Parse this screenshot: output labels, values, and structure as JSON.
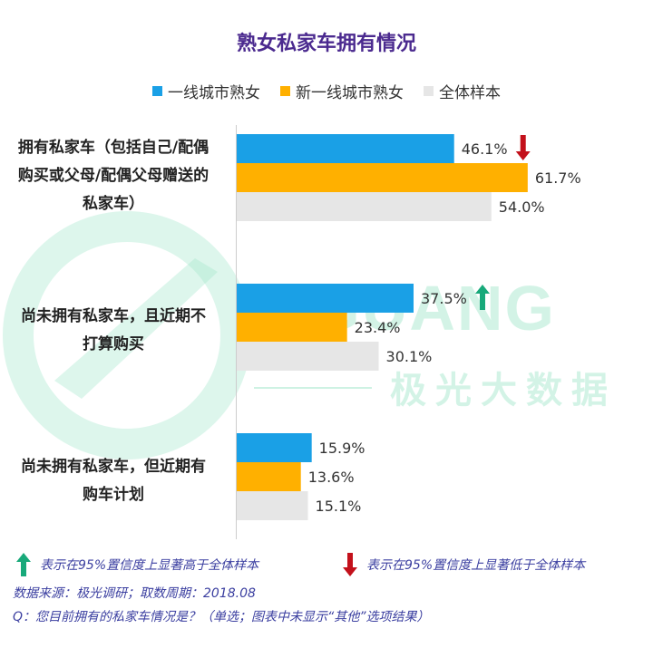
{
  "title": "熟女私家车拥有情况",
  "colors": {
    "series1": "#1aa0e6",
    "series2": "#ffb000",
    "series3": "#e6e6e6",
    "up": "#18a97a",
    "down": "#c3111b",
    "title": "#4b2a8f",
    "note": "#3b3fa0"
  },
  "legend": [
    {
      "label": "一线城市熟女",
      "color_key": "series1"
    },
    {
      "label": "新一线城市熟女",
      "color_key": "series2"
    },
    {
      "label": "全体样本",
      "color_key": "series3"
    }
  ],
  "chart_data": {
    "type": "bar",
    "orientation": "horizontal",
    "title": "熟女私家车拥有情况",
    "categories": [
      "拥有私家车（包括自己/配偶购买或父母/配偶父母赠送的私家车）",
      "尚未拥有私家车，且近期不打算购买",
      "尚未拥有私家车，但近期有购车计划"
    ],
    "category_lines": [
      [
        "拥有私家车（包括自己/配偶",
        "购买或父母/配偶父母赠送的",
        "私家车）"
      ],
      [
        "尚未拥有私家车，且近期不",
        "打算购买"
      ],
      [
        "尚未拥有私家车，但近期有",
        "购车计划"
      ]
    ],
    "series": [
      {
        "name": "一线城市熟女",
        "values": [
          46.1,
          37.5,
          15.9
        ],
        "value_labels": [
          "46.1%",
          "37.5%",
          "15.9%"
        ]
      },
      {
        "name": "新一线城市熟女",
        "values": [
          61.7,
          23.4,
          13.6
        ],
        "value_labels": [
          "61.7%",
          "23.4%",
          "13.6%"
        ]
      },
      {
        "name": "全体样本",
        "values": [
          54.0,
          30.1,
          15.1
        ],
        "value_labels": [
          "54.0%",
          "30.1%",
          "15.1%"
        ]
      }
    ],
    "significance_markers": [
      {
        "category_index": 0,
        "series_index": 0,
        "direction": "down"
      },
      {
        "category_index": 1,
        "series_index": 0,
        "direction": "up"
      }
    ],
    "xlim": [
      0,
      70
    ],
    "grid": false,
    "legend_position": "top"
  },
  "watermark": {
    "text": "JIGUANG",
    "cn": "极光大数据"
  },
  "notes": {
    "up": "表示在95%置信度上显著高于全体样本",
    "down": "表示在95%置信度上显著低于全体样本",
    "source": "数据来源：极光调研；取数周期：2018.08",
    "question": "Q：您目前拥有的私家车情况是？（单选；图表中未显示“其他”选项结果）"
  }
}
